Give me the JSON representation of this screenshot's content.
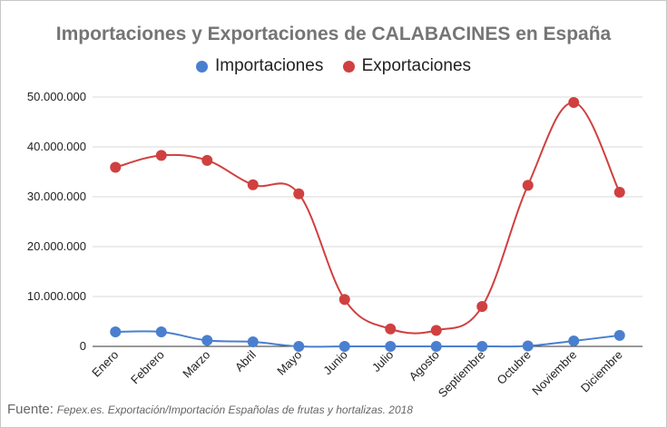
{
  "chart_data": {
    "type": "line",
    "title": "Importaciones y Exportaciones de CALABACINES en España",
    "categories": [
      "Enero",
      "Febrero",
      "Marzo",
      "Abril",
      "Mayo",
      "Junio",
      "Julio",
      "Agosto",
      "Septiembre",
      "Octubre",
      "Noviembre",
      "Diciembre"
    ],
    "series": [
      {
        "name": "Importaciones",
        "color": "#4a7fd0",
        "values": [
          2900000,
          2900000,
          1200000,
          900000,
          0,
          0,
          0,
          0,
          0,
          100000,
          1100000,
          2200000
        ]
      },
      {
        "name": "Exportaciones",
        "color": "#d04040",
        "values": [
          35900000,
          38300000,
          37300000,
          32400000,
          30600000,
          9400000,
          3500000,
          3200000,
          8000000,
          32300000,
          48900000,
          30900000
        ]
      }
    ],
    "yticks": [
      "0",
      "10.000.000",
      "20.000.000",
      "30.000.000",
      "40.000.000",
      "50.000.000"
    ],
    "ylim": [
      0,
      50000000
    ],
    "grid": true,
    "legend_position": "top"
  },
  "footer": {
    "label": "Fuente:",
    "text": "Fepex.es. Exportación/Importación Españolas de frutas y hortalizas. 2018"
  }
}
